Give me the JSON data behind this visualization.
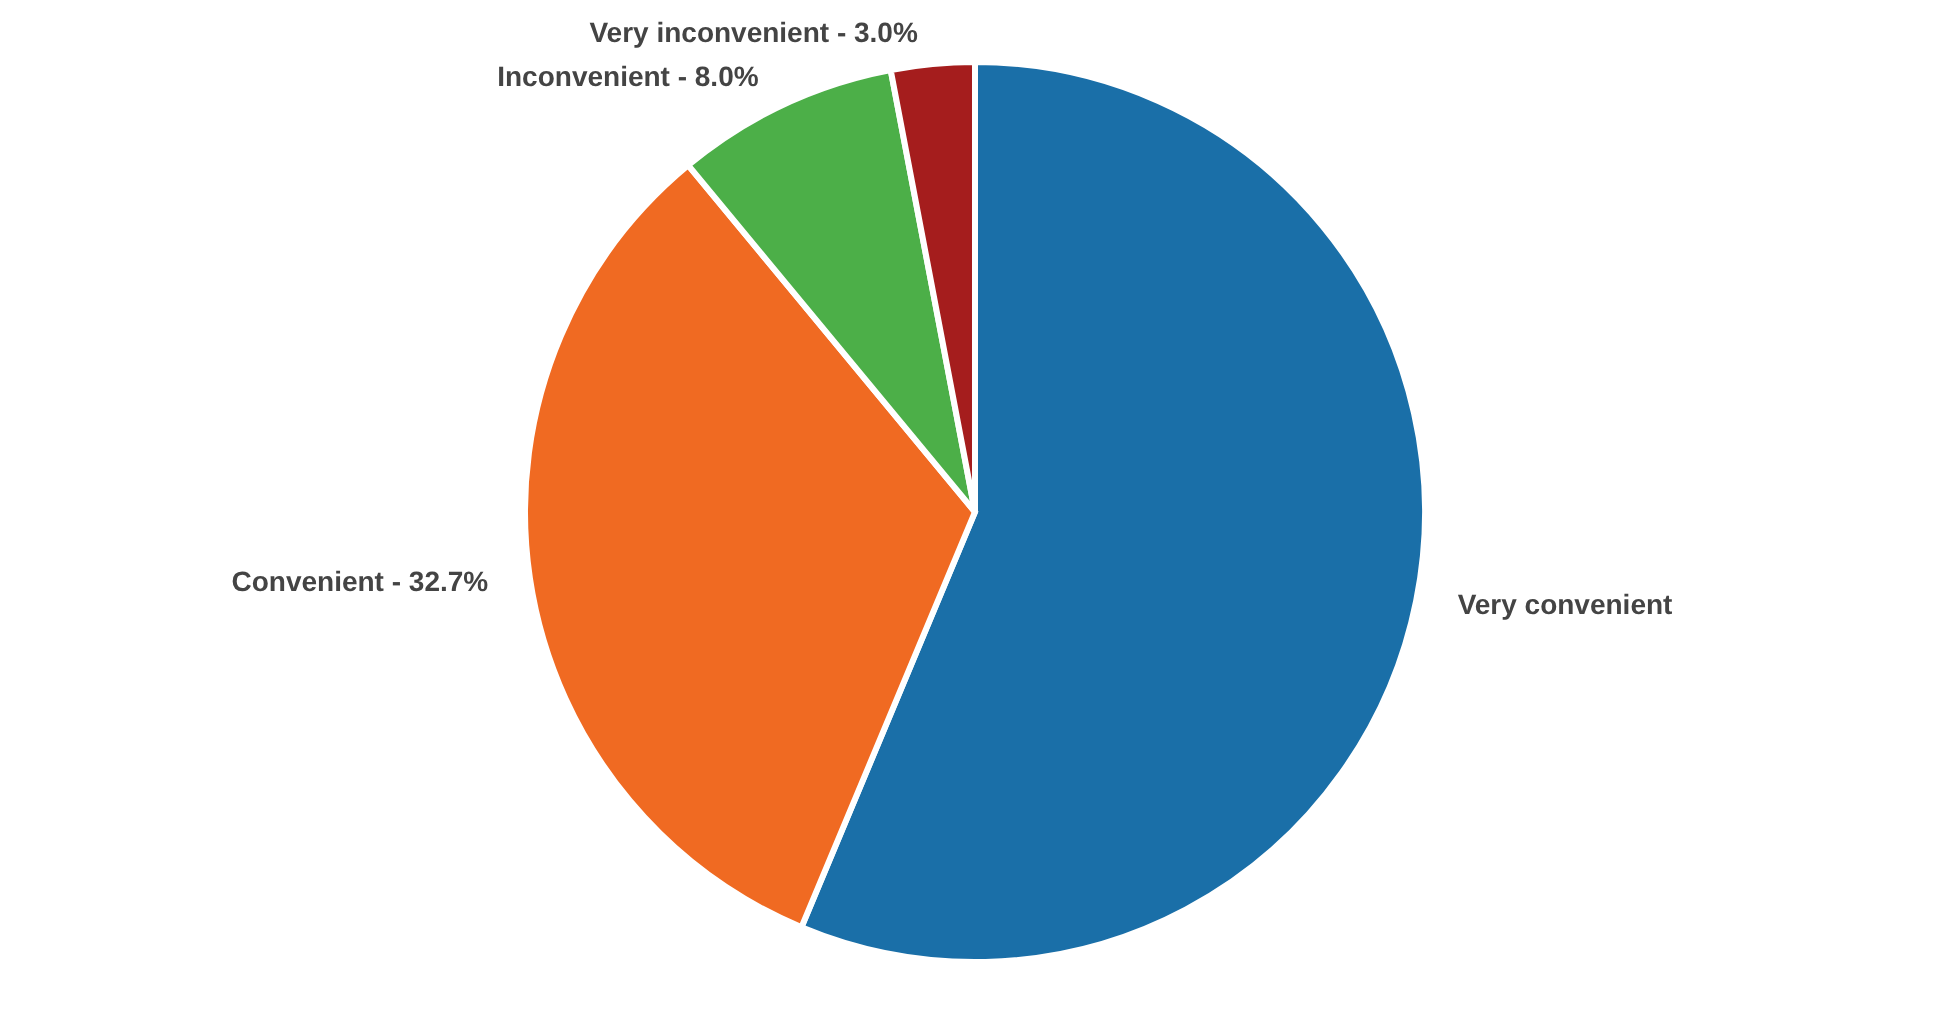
{
  "chart_data": {
    "type": "pie",
    "categories": [
      "Very convenient",
      "Convenient",
      "Inconvenient",
      "Very inconvenient"
    ],
    "values": [
      56.3,
      32.7,
      8.0,
      3.0
    ],
    "colors": [
      "#1a6fa8",
      "#f06a22",
      "#4caf48",
      "#a51d1d"
    ],
    "value_labels": [
      null,
      "32.7%",
      "8.0%",
      "3.0%"
    ]
  }
}
